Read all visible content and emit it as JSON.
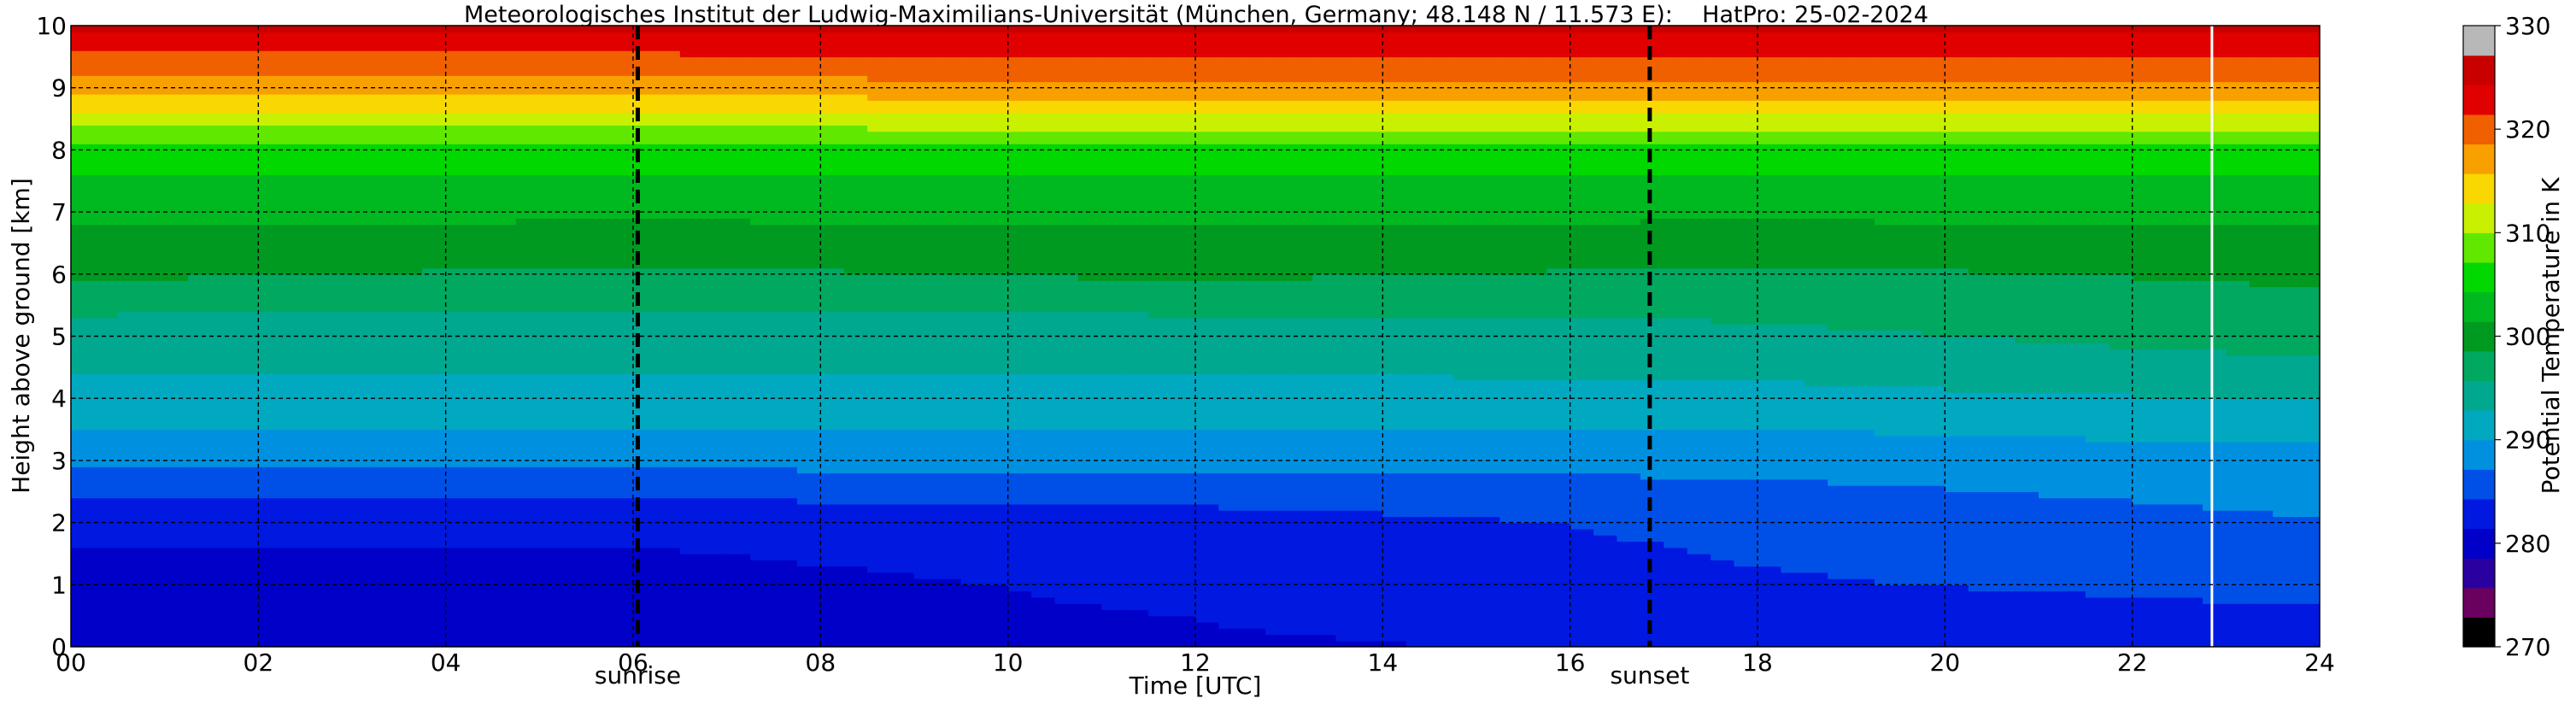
{
  "chart_data": {
    "type": "heatmap",
    "title": "Meteorologisches Institut der Ludwig-Maximilians-Universität (München, Germany; 48.148 N / 11.573 E):    HatPro: 25-02-2024",
    "xlabel": "Time [UTC]",
    "ylabel": "Height above ground [km]",
    "colorbar_label": "Potential Temperature in K",
    "xlim": [
      0,
      24
    ],
    "ylim": [
      0,
      10
    ],
    "x_ticks": [
      0,
      2,
      4,
      6,
      8,
      10,
      12,
      14,
      16,
      18,
      20,
      22,
      24
    ],
    "x_tick_labels": [
      "00",
      "02",
      "04",
      "06",
      "08",
      "10",
      "12",
      "14",
      "16",
      "18",
      "20",
      "22",
      "24"
    ],
    "y_ticks": [
      0,
      1,
      2,
      3,
      4,
      5,
      6,
      7,
      8,
      9,
      10
    ],
    "y_tick_labels": [
      "0",
      "1",
      "2",
      "3",
      "4",
      "5",
      "6",
      "7",
      "8",
      "9",
      "10"
    ],
    "colorbar_range": [
      270,
      330
    ],
    "colorbar_ticks": [
      270,
      280,
      290,
      300,
      310,
      320,
      330
    ],
    "colorbar_tick_labels": [
      "270",
      "280",
      "290",
      "300",
      "310",
      "320",
      "330"
    ],
    "grid": true,
    "annotations": [
      {
        "label": "sunrise",
        "x": 6.05
      },
      {
        "label": "sunset",
        "x": 16.85
      }
    ],
    "data_gap_x": 22.85,
    "profiles": [
      {
        "time": 0,
        "heights_km": [
          0,
          1,
          2,
          3,
          4,
          5,
          6,
          7,
          8,
          9,
          10
        ],
        "theta_K": [
          280,
          280.5,
          282,
          288,
          292,
          294,
          299,
          302,
          306,
          317,
          325
        ]
      },
      {
        "time": 6,
        "heights_km": [
          0,
          1,
          2,
          3,
          4,
          5,
          6,
          7,
          8,
          9,
          10
        ],
        "theta_K": [
          280,
          280.5,
          282,
          288,
          292,
          294,
          298,
          302,
          306,
          317,
          325
        ]
      },
      {
        "time": 12,
        "heights_km": [
          0,
          1,
          2,
          3,
          4,
          5,
          6,
          7,
          8,
          9,
          10
        ],
        "theta_K": [
          281,
          282,
          283,
          288,
          292,
          294,
          299,
          302,
          306,
          318,
          325
        ]
      },
      {
        "time": 18,
        "heights_km": [
          0,
          1,
          2,
          3,
          4,
          5,
          6,
          7,
          8,
          9,
          10
        ],
        "theta_K": [
          282,
          284,
          285,
          288,
          292,
          295,
          298,
          302,
          306,
          318,
          325
        ]
      },
      {
        "time": 24,
        "heights_km": [
          0,
          1,
          2,
          3,
          4,
          5,
          6,
          7,
          8,
          9,
          10
        ],
        "theta_K": [
          283,
          285,
          287,
          289,
          293,
          297,
          299,
          302,
          306,
          318,
          325
        ]
      }
    ],
    "colormap": [
      "#000000",
      "#6a0060",
      "#2a00a0",
      "#0000c8",
      "#0018e0",
      "#0050e8",
      "#0090e0",
      "#00a8c0",
      "#00a890",
      "#00a860",
      "#009a20",
      "#00b820",
      "#00d800",
      "#60e800",
      "#c8f000",
      "#f8d800",
      "#f8a000",
      "#f06000",
      "#e00000",
      "#c80000",
      "#b8b8b8"
    ]
  }
}
